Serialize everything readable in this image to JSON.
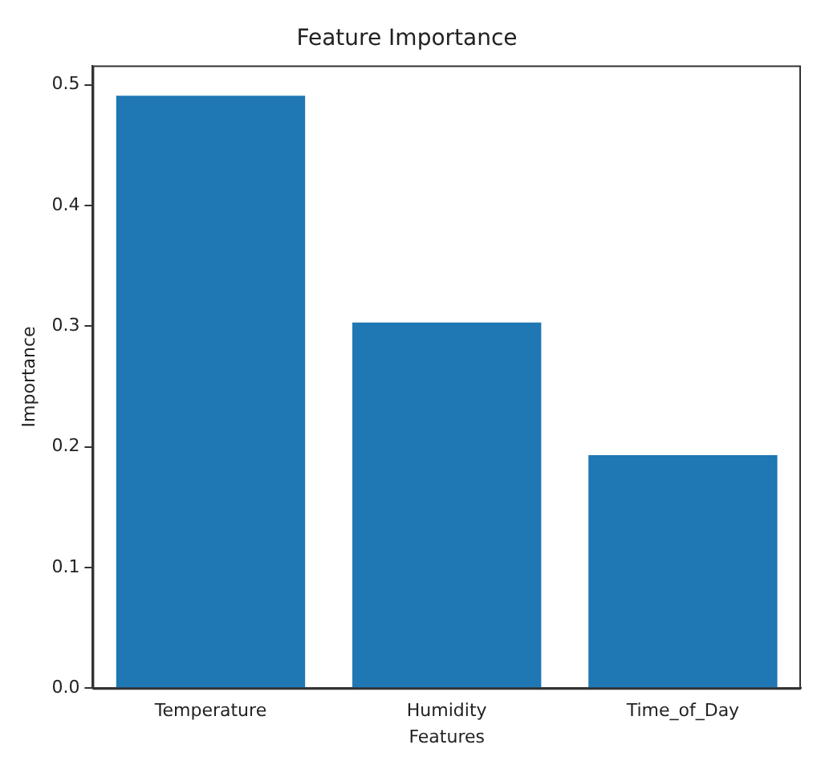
{
  "chart_data": {
    "type": "bar",
    "title": "Feature Importance",
    "xlabel": "Features",
    "ylabel": "Importance",
    "categories": [
      "Temperature",
      "Humidity",
      "Time_of_Day"
    ],
    "values": [
      0.491,
      0.303,
      0.193
    ],
    "color": "#1f77b4",
    "ylim": [
      0,
      0.516
    ],
    "yticks": [
      {
        "value": 0,
        "label": "0.0"
      },
      {
        "value": 0.1,
        "label": "0.1"
      },
      {
        "value": 0.2,
        "label": "0.2"
      },
      {
        "value": 0.3,
        "label": "0.3"
      },
      {
        "value": 0.4,
        "label": "0.4"
      },
      {
        "value": 0.5,
        "label": "0.5"
      }
    ],
    "grid": false
  }
}
